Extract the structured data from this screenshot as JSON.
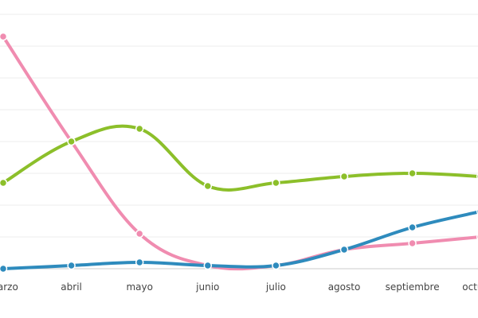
{
  "chart_data": {
    "type": "line",
    "categories": [
      "marzo",
      "abril",
      "mayo",
      "junio",
      "julio",
      "agosto",
      "septiembre",
      "octubre"
    ],
    "ylim": [
      0,
      8
    ],
    "grid": true,
    "legend": "none",
    "smooth": true,
    "series": [
      {
        "color": "#f08cb0",
        "values": [
          7.3,
          4.0,
          1.1,
          0.1,
          0.1,
          0.6,
          0.8,
          1.0
        ]
      },
      {
        "color": "#8cbf2a",
        "values": [
          2.7,
          4.0,
          4.4,
          2.6,
          2.7,
          2.9,
          3.0,
          2.9
        ]
      },
      {
        "color": "#2e8bbd",
        "values": [
          0.0,
          0.1,
          0.2,
          0.1,
          0.1,
          0.6,
          1.3,
          1.8
        ]
      }
    ]
  }
}
